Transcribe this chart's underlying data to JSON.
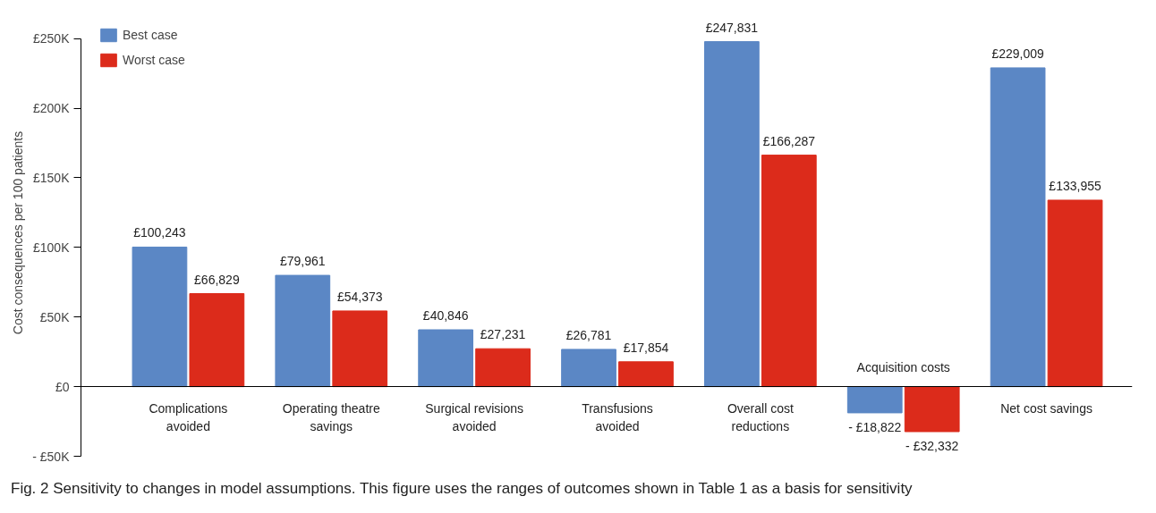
{
  "chart_data": {
    "type": "bar",
    "ylabel": "Cost consequences per 100 patients",
    "categories": [
      "Complications\navoided",
      "Operating theatre\nsavings",
      "Surgical revisions\navoided",
      "Transfusions\navoided",
      "Overall cost\nreductions",
      "Acquisition costs",
      "Net cost savings"
    ],
    "series": [
      {
        "name": "Best case",
        "color": "#5b87c5",
        "values": [
          100243,
          79961,
          40846,
          26781,
          247831,
          -18822,
          229009
        ],
        "value_labels": [
          "£100,243",
          "£79,961",
          "£40,846",
          "£26,781",
          "£247,831",
          "- £18,822",
          "£229,009"
        ]
      },
      {
        "name": "Worst case",
        "color": "#dc2b1b",
        "values": [
          66829,
          54373,
          27231,
          17854,
          166287,
          -32332,
          133955
        ],
        "value_labels": [
          "£66,829",
          "£54,373",
          "£27,231",
          "£17,854",
          "£166,287",
          "- £32,332",
          "£133,955"
        ]
      }
    ],
    "ylim": [
      -50000,
      250000
    ],
    "yticks": [
      {
        "value": -50000,
        "label": "- £50K"
      },
      {
        "value": 0,
        "label": "£0"
      },
      {
        "value": 50000,
        "label": "£50K"
      },
      {
        "value": 100000,
        "label": "£100K"
      },
      {
        "value": 150000,
        "label": "£150K"
      },
      {
        "value": 200000,
        "label": "£200K"
      },
      {
        "value": 250000,
        "label": "£250K"
      }
    ],
    "grid": false,
    "legend": "top left",
    "annotations": [
      "Fig. 2 Sensitivity to changes in model assumptions. This figure uses the ranges of outcomes shown in Table 1 as a basis for sensitivity"
    ]
  }
}
